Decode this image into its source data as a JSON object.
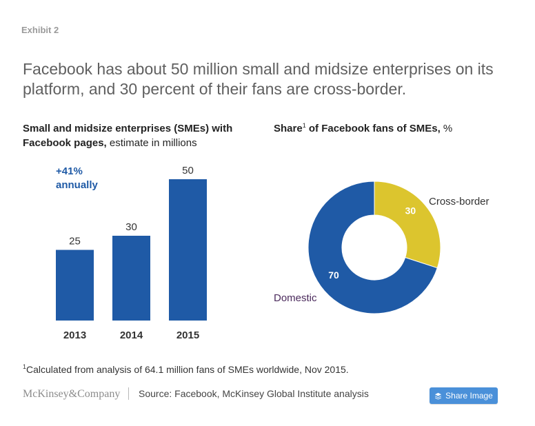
{
  "exhibit_label": "Exhibit 2",
  "headline": "Facebook has about 50 million small and midsize enterprises on its platform, and 30 percent of their fans are cross-border.",
  "colors": {
    "bar_blue": "#1f5aa6",
    "donut_blue": "#1f5aa6",
    "donut_yellow": "#dcc52e",
    "growth_text": "#1f5aa6",
    "domestic_label": "#4b2a5c",
    "button_bg": "#4a90d9"
  },
  "chart_data": [
    {
      "type": "bar",
      "title_bold": "Small and midsize enterprises (SMEs) with Facebook pages,",
      "title_regular": " estimate in millions",
      "categories": [
        "2013",
        "2014",
        "2015"
      ],
      "values": [
        25,
        30,
        50
      ],
      "value_labels": [
        "25",
        "30",
        "50"
      ],
      "annotation_line1": "+41%",
      "annotation_line2": "annually",
      "xlabel": "",
      "ylabel": "",
      "ylim": [
        0,
        50
      ],
      "grid": false
    },
    {
      "type": "pie",
      "subtype": "donut",
      "title_bold_part1": "Share",
      "title_sup": "1",
      "title_bold_part2": " of Facebook fans of SMEs,",
      "title_regular": " %",
      "slices": [
        {
          "label": "Cross-border",
          "value": 30,
          "value_label": "30"
        },
        {
          "label": "Domestic",
          "value": 70,
          "value_label": "70"
        }
      ]
    }
  ],
  "footnote": {
    "marker": "1",
    "text": "Calculated from analysis of 64.1 million fans of SMEs worldwide, Nov 2015."
  },
  "footer": {
    "brand": "McKinsey&Company",
    "source": "Source: Facebook, McKinsey Global Institute analysis"
  },
  "share_button": {
    "label": "Share Image",
    "icon": "layers-icon"
  }
}
